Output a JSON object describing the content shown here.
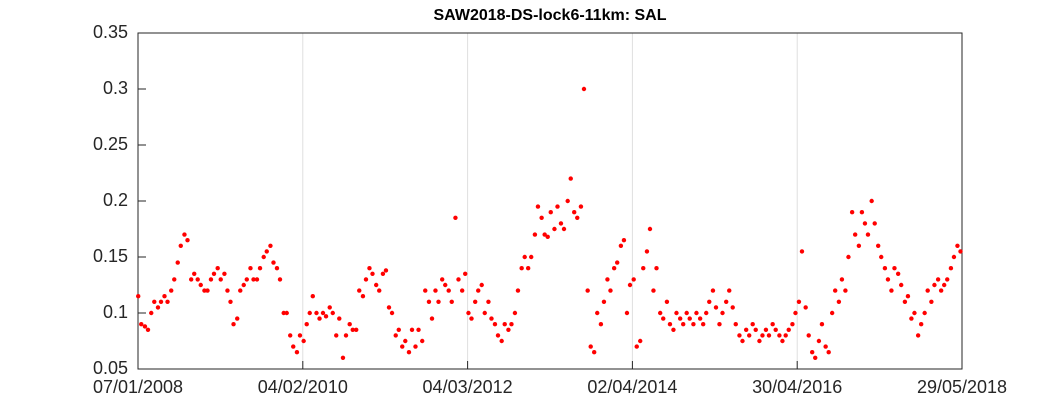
{
  "chart_data": {
    "type": "scatter",
    "title": "SAW2018-DS-lock6-11km: SAL",
    "x": [
      "2008-01-08",
      "2008-01-22",
      "2008-02-08",
      "2008-02-22",
      "2008-03-08",
      "2008-03-22",
      "2008-04-08",
      "2008-04-22",
      "2008-05-08",
      "2008-05-22",
      "2008-06-08",
      "2008-06-22",
      "2008-07-08",
      "2008-07-22",
      "2008-08-08",
      "2008-08-22",
      "2008-09-08",
      "2008-09-22",
      "2008-10-08",
      "2008-10-22",
      "2008-11-08",
      "2008-11-22",
      "2008-12-08",
      "2008-12-22",
      "2009-01-08",
      "2009-01-22",
      "2009-02-08",
      "2009-02-22",
      "2009-03-08",
      "2009-03-22",
      "2009-04-08",
      "2009-04-22",
      "2009-05-08",
      "2009-05-22",
      "2009-06-08",
      "2009-06-22",
      "2009-07-08",
      "2009-07-22",
      "2009-08-08",
      "2009-08-22",
      "2009-09-08",
      "2009-09-22",
      "2009-10-08",
      "2009-10-22",
      "2009-11-08",
      "2009-11-22",
      "2009-12-08",
      "2009-12-22",
      "2010-01-08",
      "2010-01-22",
      "2010-02-08",
      "2010-02-22",
      "2010-03-08",
      "2010-03-22",
      "2010-04-08",
      "2010-04-22",
      "2010-05-08",
      "2010-05-22",
      "2010-06-08",
      "2010-06-22",
      "2010-07-08",
      "2010-07-22",
      "2010-08-08",
      "2010-08-22",
      "2010-09-08",
      "2010-09-22",
      "2010-10-08",
      "2010-10-22",
      "2010-11-08",
      "2010-11-22",
      "2010-12-08",
      "2010-12-22",
      "2011-01-08",
      "2011-01-22",
      "2011-02-08",
      "2011-02-22",
      "2011-03-08",
      "2011-03-22",
      "2011-04-08",
      "2011-04-22",
      "2011-05-08",
      "2011-05-22",
      "2011-06-08",
      "2011-06-22",
      "2011-07-08",
      "2011-07-22",
      "2011-08-08",
      "2011-08-22",
      "2011-09-08",
      "2011-09-22",
      "2011-10-08",
      "2011-10-22",
      "2011-11-08",
      "2011-11-22",
      "2011-12-08",
      "2011-12-22",
      "2012-01-08",
      "2012-01-22",
      "2012-02-08",
      "2012-02-22",
      "2012-03-08",
      "2012-03-22",
      "2012-04-08",
      "2012-04-22",
      "2012-05-08",
      "2012-05-22",
      "2012-06-08",
      "2012-06-22",
      "2012-07-08",
      "2012-07-22",
      "2012-08-08",
      "2012-08-22",
      "2012-09-08",
      "2012-09-22",
      "2012-10-08",
      "2012-10-22",
      "2012-11-08",
      "2012-11-22",
      "2012-12-08",
      "2012-12-22",
      "2013-01-08",
      "2013-01-22",
      "2013-02-08",
      "2013-02-22",
      "2013-03-08",
      "2013-03-22",
      "2013-04-08",
      "2013-04-22",
      "2013-05-08",
      "2013-05-22",
      "2013-06-08",
      "2013-06-22",
      "2013-07-08",
      "2013-07-22",
      "2013-08-08",
      "2013-08-22",
      "2013-09-08",
      "2013-09-22",
      "2013-10-08",
      "2013-10-22",
      "2013-11-08",
      "2013-11-22",
      "2013-12-08",
      "2013-12-22",
      "2014-01-08",
      "2014-01-22",
      "2014-02-08",
      "2014-02-22",
      "2014-03-08",
      "2014-03-22",
      "2014-04-08",
      "2014-04-22",
      "2014-05-08",
      "2014-05-22",
      "2014-06-08",
      "2014-06-22",
      "2014-07-08",
      "2014-07-22",
      "2014-08-08",
      "2014-08-22",
      "2014-09-08",
      "2014-09-22",
      "2014-10-08",
      "2014-10-22",
      "2014-11-08",
      "2014-11-22",
      "2014-12-08",
      "2014-12-22",
      "2015-01-08",
      "2015-01-22",
      "2015-02-08",
      "2015-02-22",
      "2015-03-08",
      "2015-03-22",
      "2015-04-08",
      "2015-04-22",
      "2015-05-08",
      "2015-05-22",
      "2015-06-08",
      "2015-06-22",
      "2015-07-08",
      "2015-07-22",
      "2015-08-08",
      "2015-08-22",
      "2015-09-08",
      "2015-09-22",
      "2015-10-08",
      "2015-10-22",
      "2015-11-08",
      "2015-11-22",
      "2015-12-08",
      "2015-12-22",
      "2016-01-08",
      "2016-01-22",
      "2016-02-08",
      "2016-02-22",
      "2016-03-08",
      "2016-03-22",
      "2016-04-08",
      "2016-04-22",
      "2016-05-08",
      "2016-05-22",
      "2016-06-08",
      "2016-06-22",
      "2016-07-08",
      "2016-07-22",
      "2016-08-08",
      "2016-08-22",
      "2016-09-08",
      "2016-09-22",
      "2016-10-08",
      "2016-10-22",
      "2016-11-08",
      "2016-11-22",
      "2016-12-08",
      "2016-12-22",
      "2017-01-08",
      "2017-01-22",
      "2017-02-08",
      "2017-02-22",
      "2017-03-08",
      "2017-03-22",
      "2017-04-08",
      "2017-04-22",
      "2017-05-08",
      "2017-05-22",
      "2017-06-08",
      "2017-06-22",
      "2017-07-08",
      "2017-07-22",
      "2017-08-08",
      "2017-08-22",
      "2017-09-08",
      "2017-09-22",
      "2017-10-08",
      "2017-10-22",
      "2017-11-08",
      "2017-11-22",
      "2017-12-08",
      "2017-12-22",
      "2018-01-08",
      "2018-01-22",
      "2018-02-08",
      "2018-02-22",
      "2018-03-08",
      "2018-03-22",
      "2018-04-08",
      "2018-04-22",
      "2018-05-08",
      "2018-05-22"
    ],
    "values": [
      0.115,
      0.09,
      0.088,
      0.085,
      0.1,
      0.11,
      0.105,
      0.11,
      0.115,
      0.11,
      0.12,
      0.13,
      0.145,
      0.16,
      0.17,
      0.165,
      0.13,
      0.135,
      0.13,
      0.125,
      0.12,
      0.12,
      0.13,
      0.135,
      0.14,
      0.13,
      0.135,
      0.12,
      0.11,
      0.09,
      0.095,
      0.12,
      0.125,
      0.13,
      0.14,
      0.13,
      0.13,
      0.14,
      0.15,
      0.155,
      0.16,
      0.145,
      0.14,
      0.13,
      0.1,
      0.1,
      0.08,
      0.07,
      0.065,
      0.08,
      0.075,
      0.09,
      0.1,
      0.115,
      0.1,
      0.095,
      0.1,
      0.097,
      0.105,
      0.1,
      0.08,
      0.095,
      0.06,
      0.08,
      0.09,
      0.085,
      0.085,
      0.12,
      0.115,
      0.13,
      0.14,
      0.135,
      0.125,
      0.12,
      0.135,
      0.138,
      0.105,
      0.1,
      0.08,
      0.085,
      0.07,
      0.075,
      0.065,
      0.085,
      0.07,
      0.085,
      0.075,
      0.12,
      0.11,
      0.095,
      0.12,
      0.11,
      0.13,
      0.125,
      0.12,
      0.11,
      0.185,
      0.13,
      0.12,
      0.135,
      0.1,
      0.095,
      0.11,
      0.12,
      0.125,
      0.1,
      0.11,
      0.095,
      0.09,
      0.08,
      0.075,
      0.09,
      0.085,
      0.09,
      0.1,
      0.12,
      0.14,
      0.15,
      0.14,
      0.15,
      0.17,
      0.195,
      0.185,
      0.17,
      0.168,
      0.19,
      0.175,
      0.195,
      0.18,
      0.175,
      0.2,
      0.22,
      0.19,
      0.185,
      0.195,
      0.3,
      0.12,
      0.07,
      0.065,
      0.1,
      0.09,
      0.11,
      0.13,
      0.12,
      0.14,
      0.145,
      0.16,
      0.165,
      0.1,
      0.125,
      0.13,
      0.07,
      0.075,
      0.14,
      0.155,
      0.175,
      0.12,
      0.14,
      0.1,
      0.095,
      0.11,
      0.09,
      0.085,
      0.1,
      0.095,
      0.09,
      0.1,
      0.095,
      0.09,
      0.1,
      0.095,
      0.09,
      0.1,
      0.11,
      0.12,
      0.105,
      0.09,
      0.1,
      0.11,
      0.12,
      0.105,
      0.09,
      0.08,
      0.075,
      0.085,
      0.08,
      0.09,
      0.085,
      0.075,
      0.08,
      0.085,
      0.08,
      0.09,
      0.085,
      0.08,
      0.075,
      0.08,
      0.085,
      0.09,
      0.1,
      0.11,
      0.155,
      0.105,
      0.08,
      0.065,
      0.06,
      0.075,
      0.09,
      0.07,
      0.065,
      0.1,
      0.12,
      0.11,
      0.13,
      0.12,
      0.15,
      0.19,
      0.17,
      0.16,
      0.19,
      0.18,
      0.17,
      0.2,
      0.18,
      0.16,
      0.15,
      0.14,
      0.13,
      0.12,
      0.14,
      0.135,
      0.125,
      0.11,
      0.115,
      0.095,
      0.1,
      0.08,
      0.09,
      0.1,
      0.12,
      0.11,
      0.125,
      0.13,
      0.12,
      0.125,
      0.13,
      0.14,
      0.15,
      0.16,
      0.155
    ],
    "color": "#ff0000",
    "xlim": [
      "2008-01-07",
      "2018-05-29"
    ],
    "xticks": [
      {
        "value": "2008-01-07",
        "label": "07/01/2008"
      },
      {
        "value": "2010-02-04",
        "label": "04/02/2010"
      },
      {
        "value": "2012-03-04",
        "label": "04/03/2012"
      },
      {
        "value": "2014-04-02",
        "label": "02/04/2014"
      },
      {
        "value": "2016-04-30",
        "label": "30/04/2016"
      },
      {
        "value": "2018-05-29",
        "label": "29/05/2018"
      }
    ],
    "ylim": [
      0.05,
      0.35
    ],
    "yticks": [
      0.05,
      0.1,
      0.15,
      0.2,
      0.25,
      0.3,
      0.35
    ],
    "xgrid": true
  }
}
